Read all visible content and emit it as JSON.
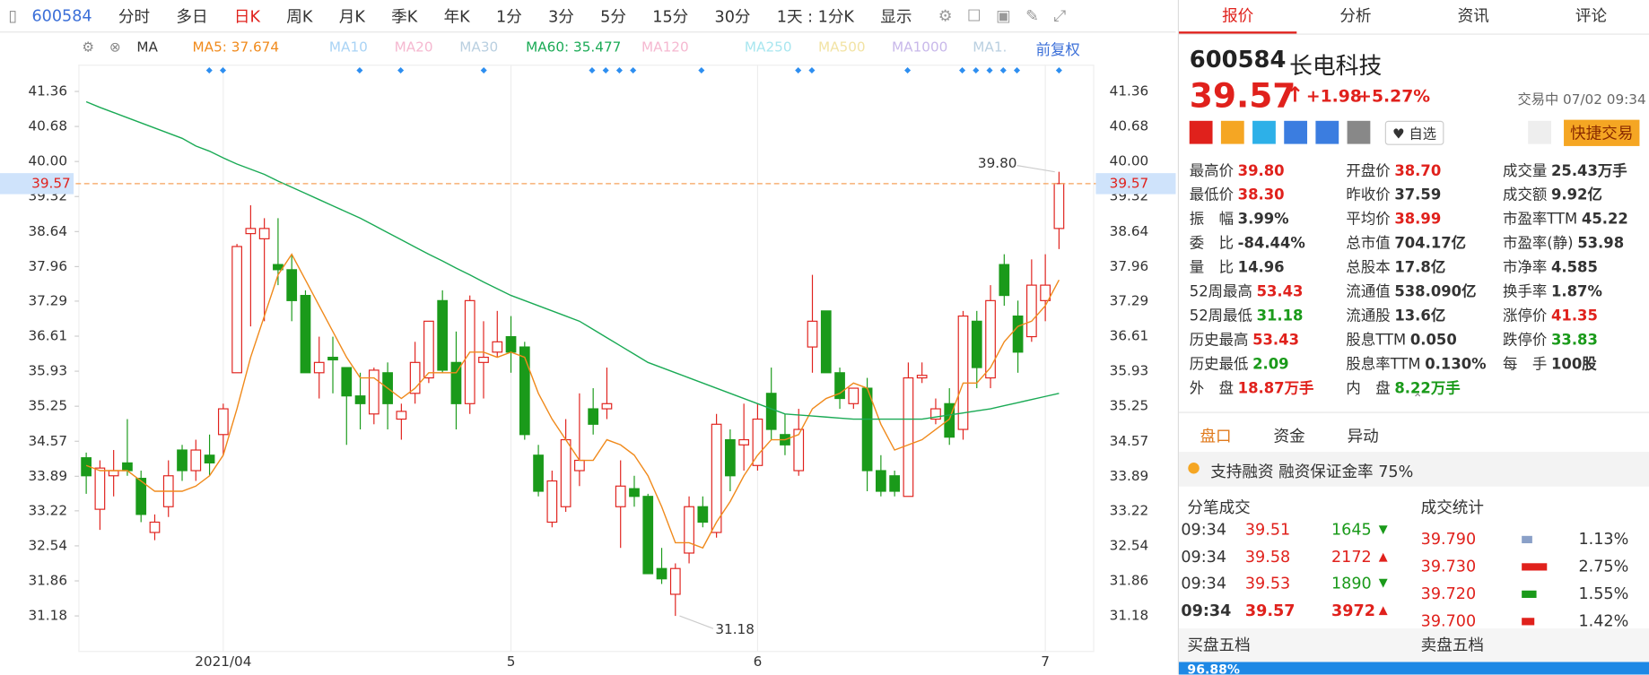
{
  "toolbar": {
    "code": "600584",
    "items": [
      "分时",
      "多日",
      "日K",
      "周K",
      "月K",
      "季K",
      "年K",
      "1分",
      "3分",
      "5分",
      "15分",
      "30分"
    ],
    "period": "1天 : 1分K",
    "display": "显示"
  },
  "legend": {
    "ma": "MA",
    "items": [
      {
        "text": "MA5: 37.674",
        "color": "#f08a1c"
      },
      {
        "text": "MA10",
        "color": "#a9d3f5"
      },
      {
        "text": "MA20",
        "color": "#f5b8d0"
      },
      {
        "text": "MA30",
        "color": "#b9cfe0"
      },
      {
        "text": "MA60: 35.477",
        "color": "#1aaa55"
      },
      {
        "text": "MA120",
        "color": "#f5b8d0"
      },
      {
        "text": "MA250",
        "color": "#a8e6ef"
      },
      {
        "text": "MA500",
        "color": "#f2e3a4"
      },
      {
        "text": "MA1000",
        "color": "#c8b8ea"
      },
      {
        "text": "MA1.",
        "color": "#b9cfe0"
      }
    ],
    "adjust": "前复权"
  },
  "chart_data": {
    "type": "candlestick",
    "ylim": [
      30.49,
      41.87
    ],
    "yticks": [
      41.36,
      40.68,
      {
        "value": 40,
        "label": "40.00"
      },
      39.32,
      38.64,
      37.96,
      37.29,
      36.61,
      35.93,
      35.25,
      34.57,
      33.89,
      33.22,
      32.54,
      31.86,
      31.18
    ],
    "categories": [
      null,
      null,
      null,
      null,
      null,
      null,
      null,
      null,
      null,
      null,
      "2021/04",
      null,
      null,
      null,
      null,
      null,
      null,
      null,
      null,
      null,
      null,
      null,
      null,
      null,
      null,
      null,
      null,
      null,
      null,
      null,
      null,
      "5",
      null,
      null,
      null,
      null,
      null,
      null,
      null,
      null,
      null,
      null,
      null,
      null,
      null,
      null,
      null,
      null,
      null,
      "6",
      null,
      null,
      null,
      null,
      null,
      null,
      null,
      null,
      null,
      null,
      null,
      null,
      null,
      null,
      null,
      null,
      null,
      null,
      null,
      null,
      "7",
      null
    ],
    "up_color": "#e0211c",
    "down_color": "#1a9a1a",
    "ohlc": [
      [
        34.25,
        34.35,
        33.55,
        33.9
      ],
      [
        33.25,
        34.2,
        32.85,
        34.05
      ],
      [
        33.9,
        34.4,
        33.5,
        34.0
      ],
      [
        34.15,
        35.0,
        33.9,
        34.0
      ],
      [
        33.85,
        34.0,
        33.0,
        33.15
      ],
      [
        32.8,
        33.15,
        32.65,
        33.0
      ],
      [
        33.3,
        34.2,
        33.1,
        33.9
      ],
      [
        34.4,
        34.5,
        33.8,
        34.0
      ],
      [
        34.0,
        34.6,
        33.8,
        34.4
      ],
      [
        34.3,
        34.7,
        33.9,
        34.15
      ],
      [
        34.7,
        35.3,
        34.3,
        35.2
      ],
      [
        35.9,
        38.4,
        35.9,
        38.35
      ],
      [
        38.6,
        39.15,
        36.8,
        38.7
      ],
      [
        38.5,
        38.9,
        36.9,
        38.7
      ],
      [
        38.0,
        38.9,
        37.6,
        37.9
      ],
      [
        37.9,
        38.2,
        36.9,
        37.3
      ],
      [
        37.4,
        37.5,
        36.0,
        35.9
      ],
      [
        35.9,
        36.6,
        35.4,
        36.1
      ],
      [
        36.2,
        36.6,
        35.5,
        36.15
      ],
      [
        36.0,
        36.0,
        34.5,
        35.45
      ],
      [
        35.45,
        35.9,
        34.8,
        35.3
      ],
      [
        35.1,
        36.0,
        34.9,
        35.95
      ],
      [
        35.9,
        36.1,
        34.8,
        35.3
      ],
      [
        35.0,
        35.3,
        34.6,
        35.15
      ],
      [
        35.5,
        36.5,
        35.3,
        36.1
      ],
      [
        35.8,
        36.9,
        35.7,
        36.9
      ],
      [
        37.3,
        37.5,
        35.9,
        35.95
      ],
      [
        36.1,
        36.7,
        34.8,
        35.3
      ],
      [
        35.3,
        37.4,
        35.1,
        37.3
      ],
      [
        36.1,
        36.9,
        35.4,
        36.2
      ],
      [
        36.3,
        37.1,
        36.2,
        36.5
      ],
      [
        36.6,
        37.0,
        35.9,
        36.3
      ],
      [
        36.4,
        36.5,
        34.6,
        34.7
      ],
      [
        34.3,
        34.5,
        33.5,
        33.6
      ],
      [
        33.0,
        34.0,
        32.9,
        33.8
      ],
      [
        33.3,
        35.0,
        33.2,
        34.6
      ],
      [
        34.0,
        35.5,
        33.7,
        34.2
      ],
      [
        35.2,
        35.6,
        34.7,
        34.9
      ],
      [
        35.2,
        36.0,
        35.0,
        35.3
      ],
      [
        33.3,
        34.2,
        32.5,
        33.7
      ],
      [
        33.65,
        33.9,
        33.3,
        33.5
      ],
      [
        33.5,
        33.55,
        32.1,
        32.0
      ],
      [
        32.1,
        32.5,
        31.8,
        31.9
      ],
      [
        31.6,
        32.2,
        31.18,
        32.1
      ],
      [
        32.4,
        33.5,
        32.2,
        33.3
      ],
      [
        33.3,
        33.5,
        32.9,
        33.0
      ],
      [
        32.8,
        35.1,
        32.7,
        34.9
      ],
      [
        34.6,
        34.8,
        33.6,
        33.9
      ],
      [
        34.5,
        35.3,
        34.0,
        34.6
      ],
      [
        34.1,
        35.3,
        34.0,
        35.0
      ],
      [
        35.5,
        36.0,
        34.6,
        34.8
      ],
      [
        34.7,
        35.1,
        34.3,
        34.5
      ],
      [
        34.0,
        35.2,
        33.9,
        34.8
      ],
      [
        36.4,
        37.8,
        35.9,
        36.9
      ],
      [
        37.1,
        37.1,
        35.9,
        35.9
      ],
      [
        35.9,
        36.0,
        35.2,
        35.4
      ],
      [
        35.3,
        35.6,
        35.2,
        35.6
      ],
      [
        35.6,
        35.8,
        33.6,
        34.0
      ],
      [
        34.0,
        34.3,
        33.5,
        33.6
      ],
      [
        33.9,
        34.0,
        33.5,
        33.6
      ],
      [
        33.5,
        36.1,
        33.5,
        35.8
      ],
      [
        35.8,
        36.1,
        35.7,
        35.85
      ],
      [
        35.0,
        35.4,
        34.9,
        35.2
      ],
      [
        35.3,
        35.6,
        34.5,
        34.65
      ],
      [
        34.8,
        37.1,
        34.6,
        37.0
      ],
      [
        36.9,
        37.1,
        35.6,
        36.0
      ],
      [
        35.8,
        37.6,
        35.6,
        37.3
      ],
      [
        38.0,
        38.2,
        37.2,
        37.4
      ],
      [
        37.0,
        37.3,
        35.9,
        36.3
      ],
      [
        36.6,
        38.1,
        36.5,
        37.6
      ],
      [
        37.3,
        38.2,
        36.9,
        37.6
      ],
      [
        38.7,
        39.8,
        38.3,
        39.57
      ]
    ],
    "series": [
      {
        "name": "MA5",
        "color": "#f08a1c",
        "values": [
          34.1,
          34.0,
          34.0,
          34.0,
          33.8,
          33.6,
          33.6,
          33.6,
          33.7,
          33.9,
          34.3,
          35.2,
          36.2,
          37.0,
          37.8,
          38.2,
          37.7,
          37.2,
          36.7,
          36.2,
          35.8,
          35.8,
          35.6,
          35.4,
          35.6,
          35.9,
          35.9,
          35.9,
          36.3,
          36.3,
          36.2,
          36.3,
          36.2,
          35.5,
          35.0,
          34.6,
          34.2,
          34.2,
          34.6,
          34.5,
          34.3,
          33.9,
          33.3,
          32.6,
          32.6,
          32.5,
          33.0,
          33.4,
          33.9,
          34.3,
          34.6,
          34.6,
          34.7,
          35.2,
          35.4,
          35.5,
          35.7,
          35.6,
          34.9,
          34.4,
          34.5,
          34.6,
          34.8,
          35.0,
          35.7,
          35.7,
          36.0,
          36.5,
          36.8,
          36.9,
          37.2,
          37.7
        ]
      },
      {
        "name": "MA60",
        "color": "#1aaa55",
        "values": [
          41.16,
          41.05,
          40.95,
          40.85,
          40.75,
          40.65,
          40.55,
          40.45,
          40.3,
          40.2,
          40.07,
          39.95,
          39.85,
          39.75,
          39.62,
          39.5,
          39.38,
          39.26,
          39.14,
          39.02,
          38.9,
          38.76,
          38.62,
          38.48,
          38.34,
          38.2,
          38.07,
          37.93,
          37.8,
          37.66,
          37.53,
          37.4,
          37.3,
          37.2,
          37.1,
          37.0,
          36.9,
          36.74,
          36.58,
          36.42,
          36.26,
          36.1,
          36.0,
          35.9,
          35.8,
          35.7,
          35.6,
          35.5,
          35.4,
          35.3,
          35.2,
          35.1,
          35.08,
          35.06,
          35.04,
          35.02,
          35.0,
          35.0,
          35.0,
          35.0,
          35.0,
          35.0,
          35.04,
          35.08,
          35.12,
          35.16,
          35.2,
          35.26,
          35.32,
          35.38,
          35.44,
          35.5
        ]
      }
    ],
    "last_price": 39.57,
    "high_label": {
      "value": 39.8,
      "label": "39.80"
    },
    "low_label": 31.18
  },
  "quote": {
    "tabs": [
      "报价",
      "分析",
      "资讯",
      "评论"
    ],
    "code": "600584",
    "name": "长电科技",
    "price": "39.57",
    "change": "+1.98",
    "pct": "+5.27%",
    "status": "交易中 07/02 09:34",
    "watch": "自选",
    "trade": "快捷交易",
    "stats": [
      [
        {
          "label": "最高价",
          "value": "39.80",
          "color": "#e0211c"
        },
        {
          "label": "最低价",
          "value": "38.30",
          "color": "#e0211c"
        },
        {
          "label": "振　幅",
          "value": "3.99%",
          "color": "#333"
        },
        {
          "label": "委　比",
          "value": "-84.44%",
          "color": "#333"
        },
        {
          "label": "量　比",
          "value": "14.96",
          "color": "#333"
        },
        {
          "label": "52周最高",
          "value": "53.43",
          "color": "#e0211c"
        },
        {
          "label": "52周最低",
          "value": "31.18",
          "color": "#1a9a1a"
        },
        {
          "label": "历史最高",
          "value": "53.43",
          "color": "#e0211c"
        },
        {
          "label": "历史最低",
          "value": "2.09",
          "color": "#1a9a1a"
        },
        {
          "label": "外　盘",
          "value": "18.87万手",
          "color": "#e0211c"
        }
      ],
      [
        {
          "label": "开盘价",
          "value": "38.70",
          "color": "#e0211c"
        },
        {
          "label": "昨收价",
          "value": "37.59",
          "color": "#333"
        },
        {
          "label": "平均价",
          "value": "38.99",
          "color": "#e0211c"
        },
        {
          "label": "总市值",
          "value": "704.17亿",
          "color": "#333"
        },
        {
          "label": "总股本",
          "value": "17.8亿",
          "color": "#333"
        },
        {
          "label": "流通值",
          "value": "538.090亿",
          "color": "#333"
        },
        {
          "label": "流通股",
          "value": "13.6亿",
          "color": "#333"
        },
        {
          "label": "股息TTM",
          "value": "0.050",
          "color": "#333"
        },
        {
          "label": "股息率TTM",
          "value": "0.130%",
          "color": "#333"
        },
        {
          "label": "内　盘",
          "value": "8.22万手",
          "color": "#1a9a1a"
        }
      ],
      [
        {
          "label": "成交量",
          "value": "25.43万手",
          "color": "#333"
        },
        {
          "label": "成交额",
          "value": "9.92亿",
          "color": "#333"
        },
        {
          "label": "市盈率TTM",
          "value": "45.22",
          "color": "#333"
        },
        {
          "label": "市盈率(静)",
          "value": "53.98",
          "color": "#333"
        },
        {
          "label": "市净率",
          "value": "4.585",
          "color": "#333"
        },
        {
          "label": "换手率",
          "value": "1.87%",
          "color": "#333"
        },
        {
          "label": "涨停价",
          "value": "41.35",
          "color": "#e0211c"
        },
        {
          "label": "跌停价",
          "value": "33.83",
          "color": "#1a9a1a"
        },
        {
          "label": "每　手",
          "value": "100股",
          "color": "#333"
        }
      ]
    ],
    "subtabs": [
      "盘口",
      "资金",
      "异动"
    ],
    "banner": "支持融资 融资保证金率 75%",
    "ticks_title": "分笔成交",
    "stats_title": "成交统计",
    "ticks": [
      {
        "time": "09:34",
        "price": "39.51",
        "vol": "1645",
        "color": "#1a9a1a"
      },
      {
        "time": "09:34",
        "price": "39.58",
        "vol": "2172",
        "color": "#e0211c"
      },
      {
        "time": "09:34",
        "price": "39.53",
        "vol": "1890",
        "color": "#1a9a1a"
      },
      {
        "time": "09:34",
        "price": "39.57",
        "vol": "3972",
        "color": "#e0211c"
      }
    ],
    "dist": [
      {
        "price": "39.790",
        "pct": "1.13%"
      },
      {
        "price": "39.730",
        "pct": "2.75%"
      },
      {
        "price": "39.720",
        "pct": "1.55%"
      },
      {
        "price": "39.700",
        "pct": "1.42%"
      }
    ],
    "buy": "买盘五档",
    "sell": "卖盘五档",
    "ratio": "96.88%"
  }
}
